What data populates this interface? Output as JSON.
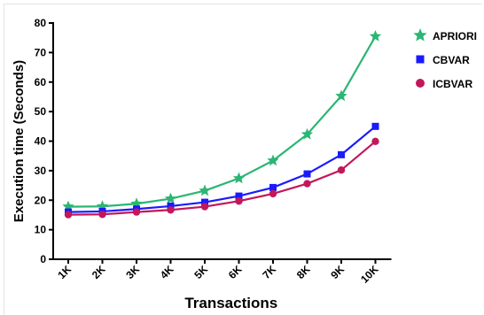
{
  "chart_data": {
    "type": "line",
    "title": "",
    "xlabel": "Transactions",
    "ylabel": "Execution time (Seconds)",
    "categories": [
      "1K",
      "2K",
      "3K",
      "4K",
      "5K",
      "6K",
      "7K",
      "8K",
      "9K",
      "10K"
    ],
    "ylim": [
      0,
      80
    ],
    "yticks": [
      "0",
      "10",
      "20",
      "30",
      "40",
      "50",
      "60",
      "70",
      "80"
    ],
    "grid": false,
    "legend_position": "right",
    "series": [
      {
        "name": "APRIORI",
        "color": "#2bb673",
        "marker": "star",
        "values": [
          17.8,
          17.9,
          18.8,
          20.5,
          23.2,
          27.4,
          33.4,
          42.3,
          55.3,
          75.5
        ]
      },
      {
        "name": "CBVAR",
        "color": "#1a1aff",
        "marker": "square",
        "values": [
          16.0,
          16.2,
          17.0,
          18.0,
          19.3,
          21.4,
          24.3,
          28.9,
          35.4,
          45.0
        ]
      },
      {
        "name": "ICBVAR",
        "color": "#c2185b",
        "marker": "circle",
        "values": [
          15.1,
          15.2,
          16.0,
          16.7,
          17.8,
          19.7,
          22.2,
          25.6,
          30.2,
          39.9
        ]
      }
    ]
  }
}
